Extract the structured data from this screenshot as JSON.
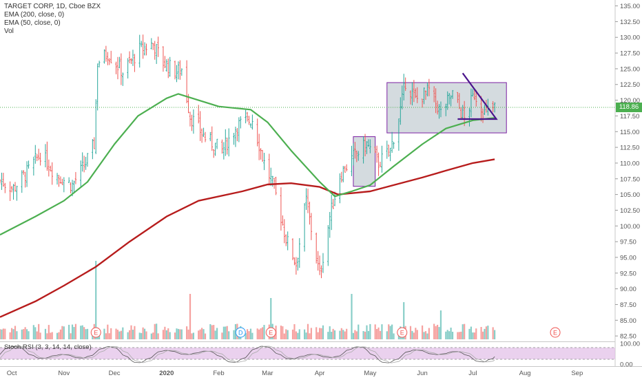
{
  "legend": {
    "symbol": "TARGET CORP, 1D, Cboe BZX",
    "ema200": "EMA (200, close, 0)",
    "ema50": "EMA (50, close, 0)",
    "vol": "Vol",
    "stoch": "Stoch RSI (3, 3, 14, 14, close)"
  },
  "last_price": "118.86",
  "colors": {
    "up": "#26a69a",
    "down": "#ef5350",
    "ema50": "#4caf50",
    "ema200": "#b71c1c",
    "stoch_fill": "#e1bee7",
    "rectangle_fill": "#b0bec5",
    "rectangle_border": "#7b1fa2",
    "triangle": "#4a148c",
    "last_price_line": "#4caf50"
  },
  "chart_data": {
    "type": "candlestick",
    "x_axis": {
      "labels": [
        "Oct",
        "Nov",
        "Dec",
        "2020",
        "Feb",
        "Mar",
        "Apr",
        "May",
        "Jun",
        "Jul",
        "Aug",
        "Sep"
      ],
      "dates": [
        "2019-10-01",
        "2019-11-01",
        "2019-12-01",
        "2020-01-01",
        "2020-02-01",
        "2020-03-01",
        "2020-04-01",
        "2020-05-01",
        "2020-06-01",
        "2020-07-01",
        "2020-08-01",
        "2020-09-01"
      ]
    },
    "y_axis": {
      "ticks": [
        "135.00",
        "132.50",
        "130.00",
        "127.50",
        "125.00",
        "122.50",
        "120.00",
        "117.50",
        "115.00",
        "112.50",
        "110.00",
        "107.50",
        "105.00",
        "102.50",
        "100.00",
        "97.50",
        "95.00",
        "92.50",
        "90.00",
        "87.50",
        "85.00",
        "82.50"
      ],
      "range": [
        81.2,
        135.5
      ]
    },
    "stoch_axis": {
      "ticks": [
        "100.00",
        "0.00"
      ]
    },
    "events": {
      "label": "E",
      "dates": [
        "2019-11-20",
        "2020-03-03",
        "2020-05-20",
        "2020-08-19"
      ]
    },
    "dividend": {
      "label": "D",
      "date": "2020-02-14"
    },
    "price_anchors": [
      [
        "2019-09-24",
        107.2
      ],
      [
        "2019-10-02",
        106.0
      ],
      [
        "2019-10-10",
        108.5
      ],
      [
        "2019-10-18",
        111.5
      ],
      [
        "2019-10-28",
        108.0
      ],
      [
        "2019-11-06",
        106.5
      ],
      [
        "2019-11-14",
        110.0
      ],
      [
        "2019-11-19",
        113.0
      ],
      [
        "2019-11-21",
        126.0
      ],
      [
        "2019-11-27",
        127.5
      ],
      [
        "2019-12-06",
        124.5
      ],
      [
        "2019-12-16",
        128.0
      ],
      [
        "2019-12-24",
        129.0
      ],
      [
        "2019-12-30",
        126.0
      ],
      [
        "2020-01-07",
        124.5
      ],
      [
        "2020-01-10",
        125.0
      ],
      [
        "2020-01-15",
        117.5
      ],
      [
        "2020-01-24",
        114.0
      ],
      [
        "2020-02-03",
        112.0
      ],
      [
        "2020-02-12",
        116.0
      ],
      [
        "2020-02-21",
        117.0
      ],
      [
        "2020-02-28",
        110.0
      ],
      [
        "2020-03-05",
        106.0
      ],
      [
        "2020-03-12",
        98.0
      ],
      [
        "2020-03-18",
        94.0
      ],
      [
        "2020-03-24",
        104.0
      ],
      [
        "2020-04-01",
        92.0
      ],
      [
        "2020-04-07",
        101.5
      ],
      [
        "2020-04-13",
        108.0
      ],
      [
        "2020-04-21",
        111.0
      ],
      [
        "2020-04-29",
        113.0
      ],
      [
        "2020-05-06",
        110.0
      ],
      [
        "2020-05-13",
        112.0
      ],
      [
        "2020-05-19",
        118.5
      ],
      [
        "2020-05-22",
        123.0
      ],
      [
        "2020-05-28",
        120.0
      ],
      [
        "2020-06-05",
        121.5
      ],
      [
        "2020-06-12",
        118.0
      ],
      [
        "2020-06-19",
        121.0
      ],
      [
        "2020-06-26",
        117.0
      ],
      [
        "2020-07-02",
        121.0
      ],
      [
        "2020-07-08",
        118.0
      ],
      [
        "2020-07-14",
        118.86
      ]
    ],
    "ema50": [
      [
        "2019-09-24",
        98.6
      ],
      [
        "2019-10-15",
        101.5
      ],
      [
        "2019-11-01",
        104.0
      ],
      [
        "2019-11-15",
        107.0
      ],
      [
        "2019-12-01",
        113.0
      ],
      [
        "2019-12-15",
        117.5
      ],
      [
        "2020-01-01",
        120.3
      ],
      [
        "2020-01-08",
        121.0
      ],
      [
        "2020-01-20",
        120.0
      ],
      [
        "2020-02-01",
        119.0
      ],
      [
        "2020-02-20",
        118.5
      ],
      [
        "2020-03-01",
        116.5
      ],
      [
        "2020-03-15",
        112.0
      ],
      [
        "2020-04-01",
        107.0
      ],
      [
        "2020-04-10",
        104.7
      ],
      [
        "2020-04-20",
        105.5
      ],
      [
        "2020-05-01",
        106.5
      ],
      [
        "2020-05-15",
        109.5
      ],
      [
        "2020-06-01",
        113.0
      ],
      [
        "2020-06-15",
        115.5
      ],
      [
        "2020-07-01",
        116.8
      ],
      [
        "2020-07-14",
        117.2
      ]
    ],
    "ema200": [
      [
        "2019-09-24",
        85.5
      ],
      [
        "2019-10-15",
        88.0
      ],
      [
        "2019-11-01",
        90.5
      ],
      [
        "2019-11-20",
        93.5
      ],
      [
        "2019-12-10",
        97.5
      ],
      [
        "2020-01-01",
        101.5
      ],
      [
        "2020-01-20",
        104.0
      ],
      [
        "2020-02-15",
        105.5
      ],
      [
        "2020-03-01",
        106.6
      ],
      [
        "2020-03-15",
        106.8
      ],
      [
        "2020-04-01",
        106.2
      ],
      [
        "2020-04-12",
        105.0
      ],
      [
        "2020-05-01",
        105.5
      ],
      [
        "2020-05-15",
        106.5
      ],
      [
        "2020-06-01",
        107.7
      ],
      [
        "2020-06-15",
        108.8
      ],
      [
        "2020-07-01",
        110.0
      ],
      [
        "2020-07-14",
        110.6
      ]
    ],
    "drawings": {
      "rect1": {
        "x0": "2020-04-21",
        "x1": "2020-05-04",
        "y0": 106.3,
        "y1": 114.2
      },
      "rect2": {
        "x0": "2020-05-11",
        "x1": "2020-07-21",
        "y0": 114.8,
        "y1": 122.8
      },
      "triangle": [
        [
          "2020-06-25",
          124.3
        ],
        [
          "2020-07-15",
          117.0
        ],
        [
          "2020-06-22",
          117.0
        ]
      ]
    },
    "volume_spikes": [
      [
        "2019-11-20",
        0.95
      ],
      [
        "2020-01-15",
        0.55
      ],
      [
        "2020-03-03",
        0.5
      ],
      [
        "2020-04-20",
        0.55
      ],
      [
        "2020-05-21",
        0.45
      ],
      [
        "2020-06-12",
        0.35
      ]
    ]
  }
}
